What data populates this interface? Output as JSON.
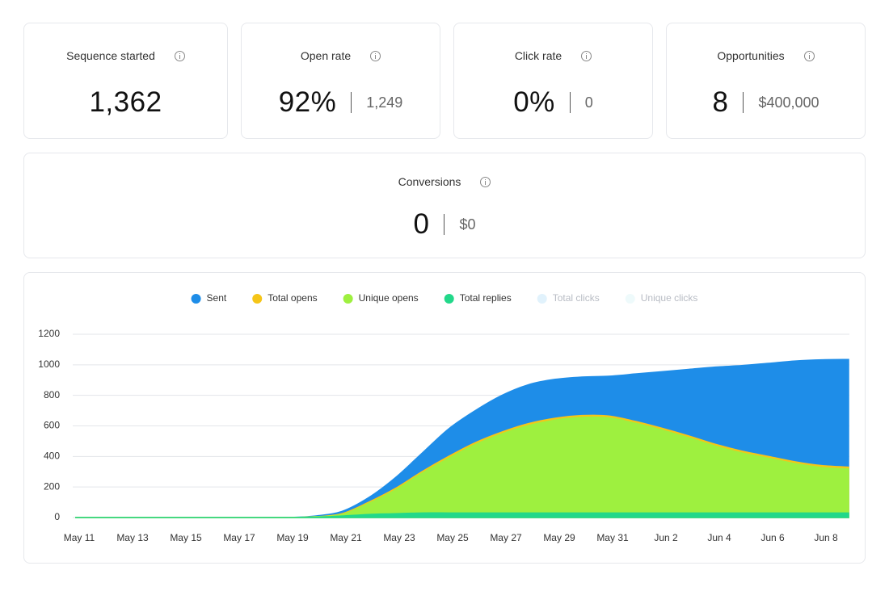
{
  "cards": [
    {
      "title": "Sequence started",
      "value": "1,362"
    },
    {
      "title": "Open rate",
      "value": "92%",
      "secondary": "1,249"
    },
    {
      "title": "Click rate",
      "value": "0%",
      "secondary": "0"
    },
    {
      "title": "Opportunities",
      "value": "8",
      "secondary": "$400,000"
    },
    {
      "title": "Conversions",
      "value": "0",
      "secondary": "$0"
    }
  ],
  "chart_data": {
    "type": "area",
    "categories": [
      "May 11",
      null,
      "May 13",
      null,
      "May 15",
      null,
      "May 17",
      null,
      "May 19",
      null,
      "May 21",
      null,
      "May 23",
      null,
      "May 25",
      null,
      "May 27",
      null,
      "May 29",
      null,
      "May 31",
      null,
      "Jun 2",
      null,
      "Jun 4",
      null,
      "Jun 6",
      null,
      "Jun 8",
      null
    ],
    "series": [
      {
        "name": "Sent",
        "color": "#1e8de8",
        "visible": true,
        "values": [
          0,
          0,
          0,
          0,
          0,
          0,
          0,
          0,
          0,
          10,
          40,
          130,
          260,
          420,
          580,
          700,
          800,
          870,
          905,
          920,
          925,
          940,
          955,
          970,
          985,
          995,
          1010,
          1025,
          1033,
          1035
        ]
      },
      {
        "name": "Total opens",
        "color": "#f5c518",
        "visible": true,
        "values": [
          0,
          0,
          0,
          0,
          0,
          0,
          0,
          0,
          0,
          5,
          25,
          100,
          190,
          300,
          400,
          490,
          560,
          615,
          650,
          668,
          665,
          630,
          585,
          535,
          480,
          435,
          400,
          365,
          340,
          330
        ]
      },
      {
        "name": "Unique opens",
        "color": "#9ef03f",
        "visible": true,
        "values": [
          0,
          0,
          0,
          0,
          0,
          0,
          0,
          0,
          0,
          5,
          20,
          92,
          180,
          290,
          388,
          478,
          548,
          603,
          638,
          656,
          653,
          618,
          573,
          523,
          468,
          423,
          388,
          353,
          328,
          318
        ]
      },
      {
        "name": "Total replies",
        "color": "#22d88a",
        "visible": true,
        "values": [
          0,
          0,
          0,
          0,
          0,
          0,
          0,
          0,
          0,
          2,
          10,
          20,
          25,
          30,
          30,
          30,
          30,
          30,
          30,
          30,
          30,
          30,
          30,
          30,
          30,
          30,
          30,
          30,
          30,
          30
        ]
      },
      {
        "name": "Total clicks",
        "color": "#e1f2fc",
        "visible": false,
        "values": [
          0,
          0,
          0,
          0,
          0,
          0,
          0,
          0,
          0,
          0,
          0,
          0,
          0,
          0,
          0,
          0,
          0,
          0,
          0,
          0,
          0,
          0,
          0,
          0,
          0,
          0,
          0,
          0,
          0,
          0
        ]
      },
      {
        "name": "Unique clicks",
        "color": "#eefafb",
        "visible": false,
        "values": [
          0,
          0,
          0,
          0,
          0,
          0,
          0,
          0,
          0,
          0,
          0,
          0,
          0,
          0,
          0,
          0,
          0,
          0,
          0,
          0,
          0,
          0,
          0,
          0,
          0,
          0,
          0,
          0,
          0,
          0
        ]
      }
    ],
    "ylim": [
      0,
      1200
    ],
    "yticks": [
      0,
      200,
      400,
      600,
      800,
      1000,
      1200
    ],
    "grid": true
  }
}
